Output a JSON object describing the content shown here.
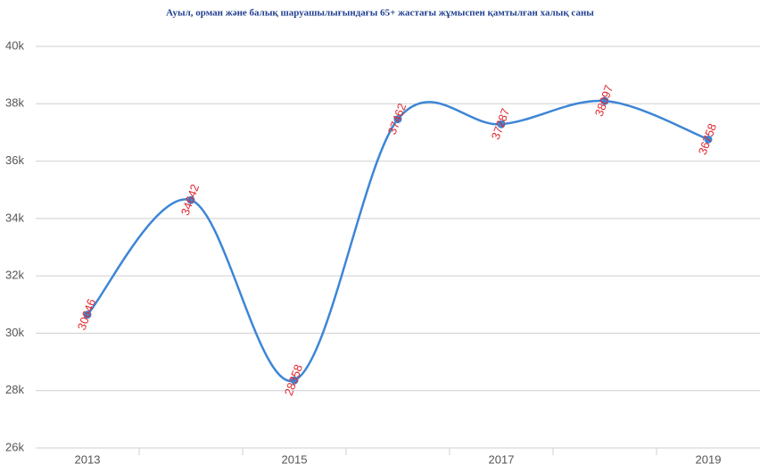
{
  "chart_data": {
    "type": "line",
    "title": "Ауыл, орман және балық шаруашылығындағы 65+ жастағы жұмыспен қамтылған халық саны",
    "categories": [
      "2013",
      null,
      "2015",
      null,
      "2017",
      null,
      "2019"
    ],
    "series": [
      {
        "name": null,
        "color": "#3d86d6",
        "values": [
          30646,
          34642,
          28358,
          37462,
          37287,
          38097,
          36758
        ]
      }
    ],
    "ylim": [
      26000,
      40000
    ],
    "yticks": [
      {
        "value": 26000,
        "label": "26k"
      },
      {
        "value": 28000,
        "label": "28k"
      },
      {
        "value": 30000,
        "label": "30k"
      },
      {
        "value": 32000,
        "label": "32k"
      },
      {
        "value": 34000,
        "label": "34k"
      },
      {
        "value": 36000,
        "label": "36k"
      },
      {
        "value": 38000,
        "label": "38k"
      },
      {
        "value": 40000,
        "label": "40k"
      }
    ],
    "grid": true,
    "smooth": true,
    "data_labels": true,
    "data_label_color": "#e0282e"
  }
}
